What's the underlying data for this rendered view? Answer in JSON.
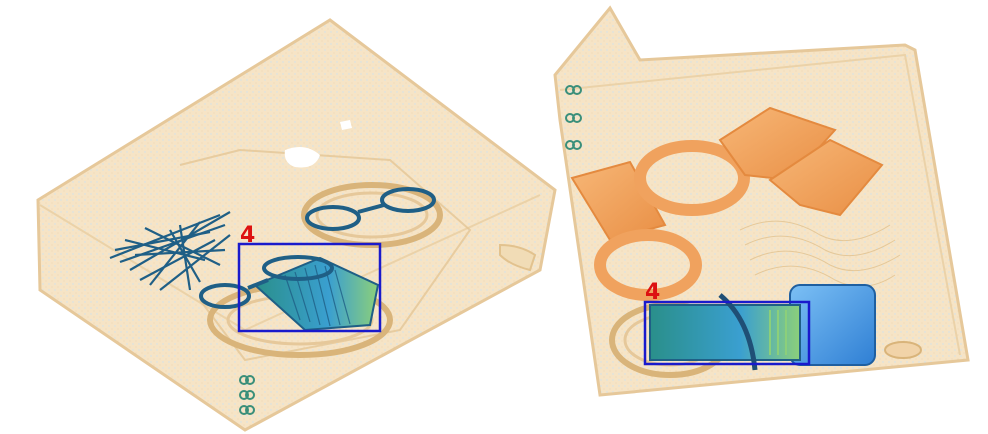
{
  "image": {
    "kind": "x-ray baggage scan",
    "background": "#ffffff"
  },
  "detections": [
    {
      "label": "4",
      "box_color": "#1a1acc",
      "label_color": "#dd1111"
    },
    {
      "label": "4",
      "box_color": "#1a1acc",
      "label_color": "#dd1111"
    }
  ],
  "palette": {
    "organic": "#f3dcb8",
    "organic_edge": "#e6c89a",
    "dense_orange": "#f0a25e",
    "metal_blue": "#2f6fb0",
    "light_blue": "#5aa8f0",
    "green": "#4ea06a"
  }
}
